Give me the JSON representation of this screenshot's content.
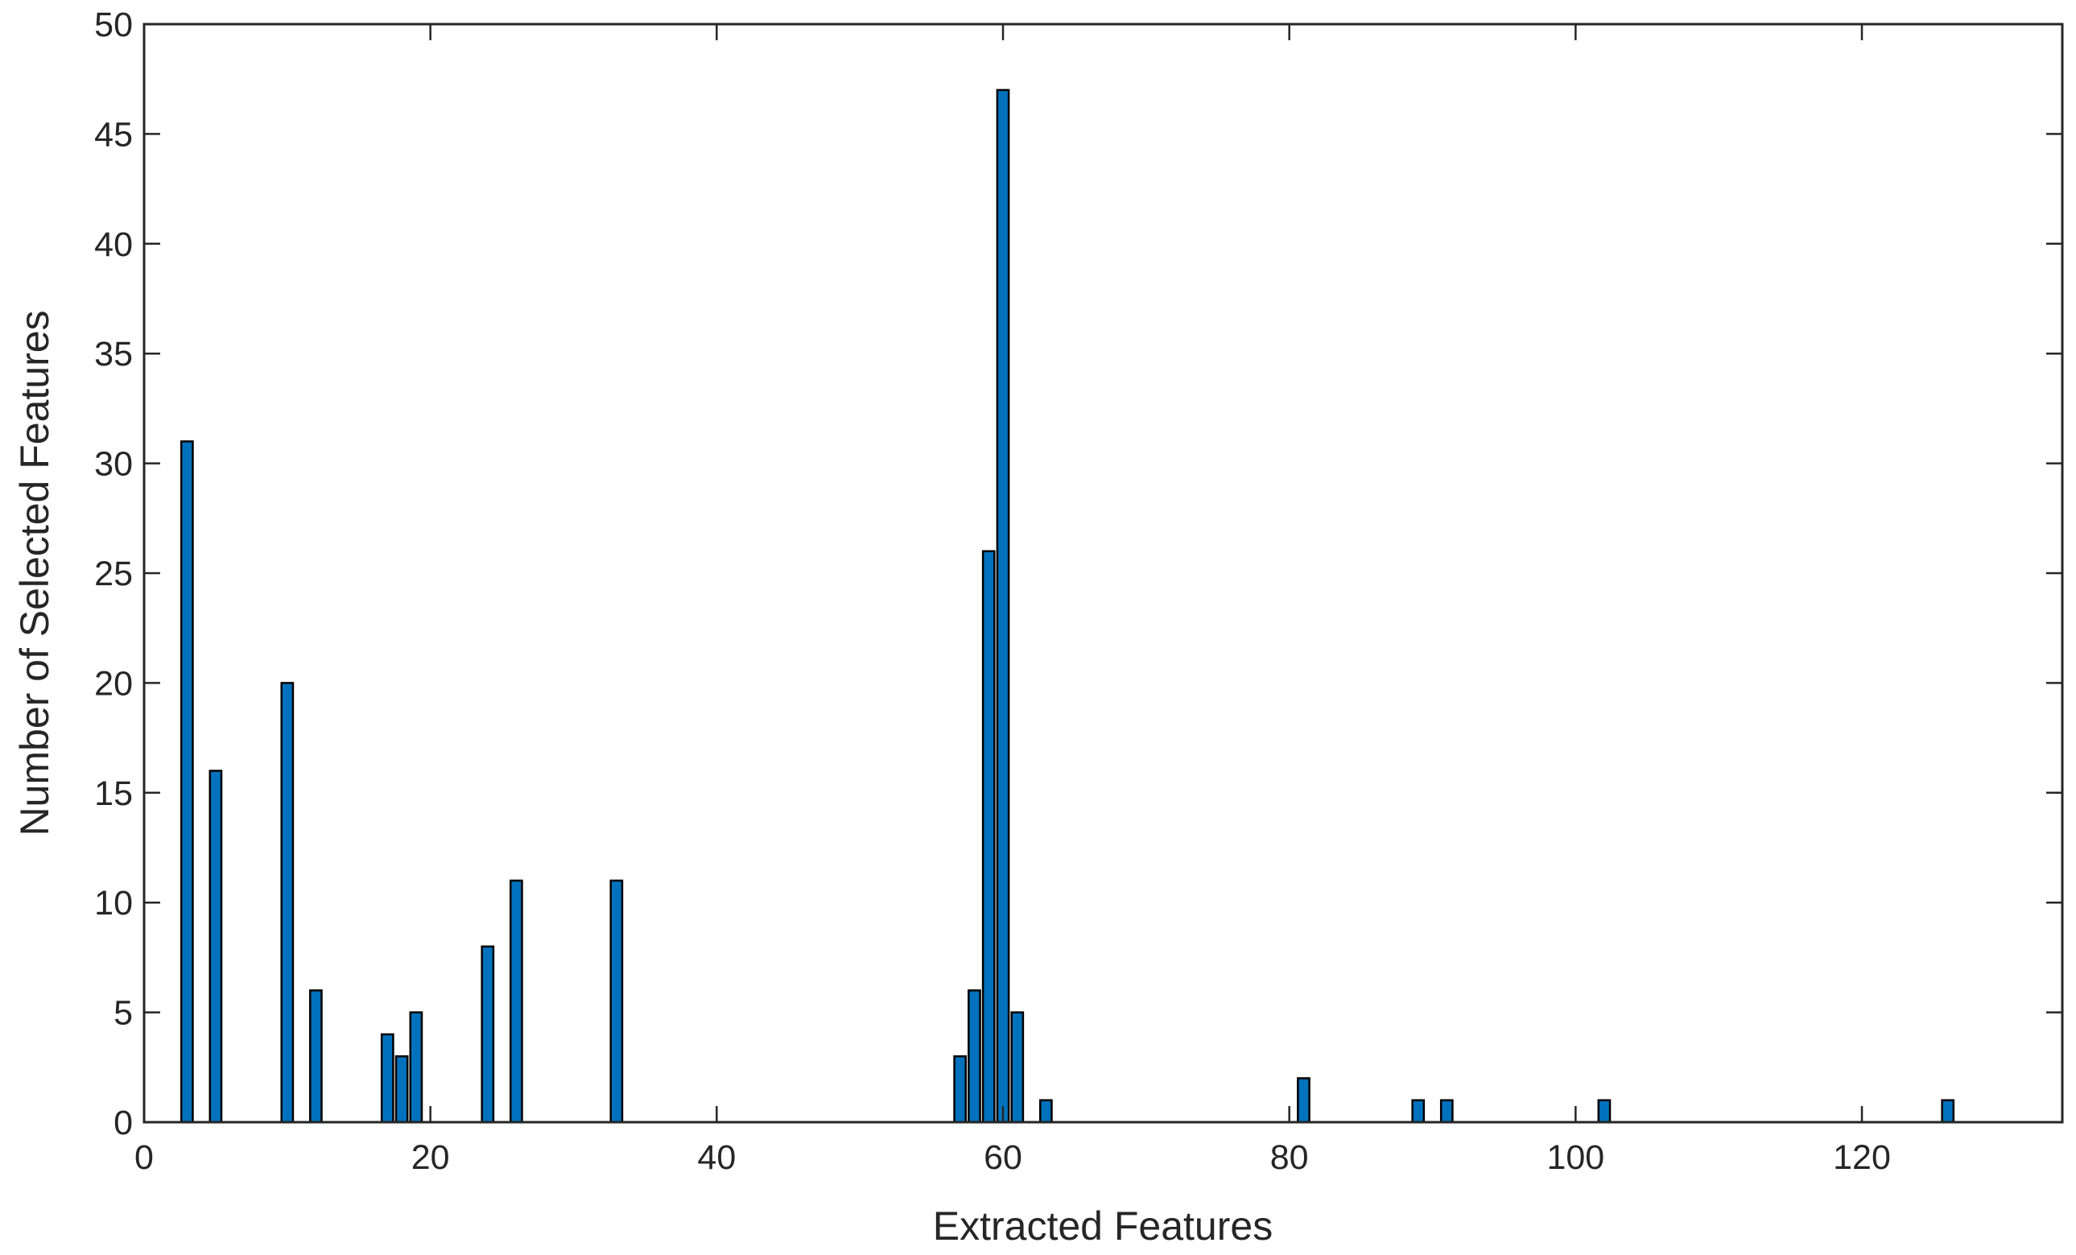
{
  "chart_data": {
    "type": "bar",
    "xlabel": "Extracted Features",
    "ylabel": "Number of Selected Features",
    "x": [
      3,
      5,
      10,
      12,
      17,
      18,
      19,
      24,
      26,
      33,
      57,
      58,
      59,
      60,
      61,
      63,
      81,
      89,
      91,
      102,
      126
    ],
    "values": [
      31,
      16,
      20,
      6,
      4,
      3,
      5,
      8,
      11,
      11,
      3,
      6,
      26,
      47,
      5,
      1,
      2,
      1,
      1,
      1,
      1
    ],
    "color": "#0072bd",
    "xlim": [
      0,
      134
    ],
    "xticks": [
      0,
      20,
      40,
      60,
      80,
      100,
      120
    ],
    "ylim": [
      0,
      50
    ],
    "yticks": [
      0,
      5,
      10,
      15,
      20,
      25,
      30,
      35,
      40,
      45,
      50
    ],
    "grid": false
  }
}
